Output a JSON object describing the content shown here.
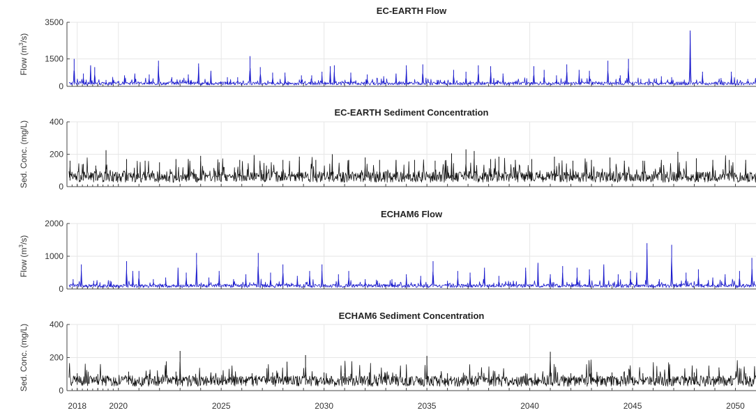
{
  "x_tick_labels": [
    "2018",
    "2020",
    "2025",
    "2030",
    "2035",
    "2040",
    "2045",
    "2050"
  ],
  "colors": {
    "flow": "#1a1acc",
    "sediment": "#111111",
    "grid": "#e6e6e6",
    "axis": "#444444"
  },
  "chart_data": [
    {
      "type": "line",
      "title": "EC-EARTH Flow",
      "ylabel": "Flow (m3/s)",
      "ylabel_parts": {
        "before": "Flow (m",
        "sup": "3",
        "after": "/s)"
      },
      "y_ticks": [
        0,
        1500,
        3500
      ],
      "ylim": [
        0,
        3500
      ],
      "xlim": [
        2017.5,
        2051.0
      ],
      "grid": true,
      "color_key": "flow",
      "series": [
        {
          "base": 200,
          "peaks": [
            {
              "x": 2017.85,
              "y": 1500
            },
            {
              "x": 2018.3,
              "y": 700
            },
            {
              "x": 2018.65,
              "y": 1150
            },
            {
              "x": 2018.85,
              "y": 1050
            },
            {
              "x": 2019.4,
              "y": 350
            },
            {
              "x": 2020.3,
              "y": 600
            },
            {
              "x": 2020.8,
              "y": 700
            },
            {
              "x": 2021.5,
              "y": 650
            },
            {
              "x": 2021.95,
              "y": 1400
            },
            {
              "x": 2022.6,
              "y": 500
            },
            {
              "x": 2023.4,
              "y": 650
            },
            {
              "x": 2023.9,
              "y": 1250
            },
            {
              "x": 2024.5,
              "y": 850
            },
            {
              "x": 2025.3,
              "y": 500
            },
            {
              "x": 2025.8,
              "y": 500
            },
            {
              "x": 2026.4,
              "y": 1650
            },
            {
              "x": 2026.9,
              "y": 1050
            },
            {
              "x": 2027.5,
              "y": 750
            },
            {
              "x": 2028.1,
              "y": 750
            },
            {
              "x": 2028.9,
              "y": 600
            },
            {
              "x": 2029.4,
              "y": 600
            },
            {
              "x": 2029.9,
              "y": 800
            },
            {
              "x": 2030.3,
              "y": 1100
            },
            {
              "x": 2030.5,
              "y": 1150
            },
            {
              "x": 2031.3,
              "y": 750
            },
            {
              "x": 2032.1,
              "y": 650
            },
            {
              "x": 2032.9,
              "y": 550
            },
            {
              "x": 2033.5,
              "y": 700
            },
            {
              "x": 2034.0,
              "y": 1150
            },
            {
              "x": 2034.8,
              "y": 1200
            },
            {
              "x": 2035.5,
              "y": 350
            },
            {
              "x": 2036.3,
              "y": 900
            },
            {
              "x": 2036.9,
              "y": 800
            },
            {
              "x": 2037.5,
              "y": 1150
            },
            {
              "x": 2038.1,
              "y": 1100
            },
            {
              "x": 2038.7,
              "y": 700
            },
            {
              "x": 2039.3,
              "y": 300
            },
            {
              "x": 2040.2,
              "y": 1100
            },
            {
              "x": 2040.7,
              "y": 900
            },
            {
              "x": 2041.3,
              "y": 600
            },
            {
              "x": 2041.8,
              "y": 1200
            },
            {
              "x": 2042.4,
              "y": 900
            },
            {
              "x": 2042.9,
              "y": 850
            },
            {
              "x": 2043.8,
              "y": 1400
            },
            {
              "x": 2044.4,
              "y": 600
            },
            {
              "x": 2044.8,
              "y": 1500
            },
            {
              "x": 2045.4,
              "y": 400
            },
            {
              "x": 2046.4,
              "y": 550
            },
            {
              "x": 2046.9,
              "y": 500
            },
            {
              "x": 2047.8,
              "y": 3050
            },
            {
              "x": 2048.4,
              "y": 800
            },
            {
              "x": 2049.3,
              "y": 450
            },
            {
              "x": 2049.8,
              "y": 800
            },
            {
              "x": 2050.6,
              "y": 400
            }
          ]
        }
      ]
    },
    {
      "type": "line",
      "title": "EC-EARTH Sediment Concentration",
      "ylabel": "Sed. Conc. (mg/L)",
      "y_ticks": [
        0,
        200,
        400
      ],
      "ylim": [
        0,
        400
      ],
      "xlim": [
        2017.5,
        2051.0
      ],
      "grid": true,
      "color_key": "sediment",
      "series": [
        {
          "base": 75,
          "peaks": [
            {
              "x": 2017.65,
              "y": 160
            },
            {
              "x": 2018.3,
              "y": 140
            },
            {
              "x": 2018.9,
              "y": 130
            },
            {
              "x": 2019.4,
              "y": 225
            },
            {
              "x": 2020.4,
              "y": 170
            },
            {
              "x": 2021.3,
              "y": 160
            },
            {
              "x": 2022.0,
              "y": 150
            },
            {
              "x": 2022.8,
              "y": 170
            },
            {
              "x": 2023.4,
              "y": 170
            },
            {
              "x": 2024.0,
              "y": 190
            },
            {
              "x": 2024.9,
              "y": 150
            },
            {
              "x": 2025.9,
              "y": 165
            },
            {
              "x": 2026.6,
              "y": 195
            },
            {
              "x": 2027.2,
              "y": 130
            },
            {
              "x": 2028.0,
              "y": 165
            },
            {
              "x": 2028.8,
              "y": 185
            },
            {
              "x": 2029.6,
              "y": 165
            },
            {
              "x": 2030.4,
              "y": 200
            },
            {
              "x": 2031.2,
              "y": 165
            },
            {
              "x": 2032.0,
              "y": 180
            },
            {
              "x": 2032.7,
              "y": 165
            },
            {
              "x": 2033.5,
              "y": 165
            },
            {
              "x": 2034.4,
              "y": 165
            },
            {
              "x": 2035.4,
              "y": 160
            },
            {
              "x": 2036.2,
              "y": 205
            },
            {
              "x": 2036.9,
              "y": 230
            },
            {
              "x": 2037.3,
              "y": 220
            },
            {
              "x": 2038.1,
              "y": 170
            },
            {
              "x": 2038.5,
              "y": 185
            },
            {
              "x": 2039.3,
              "y": 165
            },
            {
              "x": 2040.1,
              "y": 170
            },
            {
              "x": 2041.2,
              "y": 185
            },
            {
              "x": 2042.1,
              "y": 160
            },
            {
              "x": 2043.0,
              "y": 165
            },
            {
              "x": 2043.9,
              "y": 180
            },
            {
              "x": 2044.6,
              "y": 160
            },
            {
              "x": 2045.5,
              "y": 160
            },
            {
              "x": 2046.4,
              "y": 165
            },
            {
              "x": 2047.2,
              "y": 215
            },
            {
              "x": 2048.1,
              "y": 175
            },
            {
              "x": 2048.9,
              "y": 165
            },
            {
              "x": 2049.7,
              "y": 165
            },
            {
              "x": 2050.5,
              "y": 165
            }
          ]
        }
      ]
    },
    {
      "type": "line",
      "title": "ECHAM6 Flow",
      "ylabel": "Flow (m3/s)",
      "ylabel_parts": {
        "before": "Flow (m",
        "sup": "3",
        "after": "/s)"
      },
      "y_ticks": [
        0,
        1000,
        2000
      ],
      "ylim": [
        0,
        2000
      ],
      "xlim": [
        2017.5,
        2051.0
      ],
      "grid": true,
      "color_key": "flow",
      "series": [
        {
          "base": 120,
          "peaks": [
            {
              "x": 2017.8,
              "y": 300
            },
            {
              "x": 2018.2,
              "y": 750
            },
            {
              "x": 2018.8,
              "y": 250
            },
            {
              "x": 2019.6,
              "y": 250
            },
            {
              "x": 2020.4,
              "y": 850
            },
            {
              "x": 2020.7,
              "y": 550
            },
            {
              "x": 2021.0,
              "y": 550
            },
            {
              "x": 2021.7,
              "y": 300
            },
            {
              "x": 2022.3,
              "y": 350
            },
            {
              "x": 2022.9,
              "y": 650
            },
            {
              "x": 2023.3,
              "y": 500
            },
            {
              "x": 2023.8,
              "y": 1100
            },
            {
              "x": 2024.4,
              "y": 350
            },
            {
              "x": 2024.9,
              "y": 550
            },
            {
              "x": 2025.6,
              "y": 300
            },
            {
              "x": 2026.2,
              "y": 450
            },
            {
              "x": 2026.8,
              "y": 1100
            },
            {
              "x": 2027.4,
              "y": 500
            },
            {
              "x": 2028.0,
              "y": 750
            },
            {
              "x": 2028.7,
              "y": 400
            },
            {
              "x": 2029.3,
              "y": 550
            },
            {
              "x": 2029.9,
              "y": 750
            },
            {
              "x": 2030.7,
              "y": 450
            },
            {
              "x": 2031.2,
              "y": 550
            },
            {
              "x": 2032.0,
              "y": 300
            },
            {
              "x": 2032.6,
              "y": 250
            },
            {
              "x": 2033.3,
              "y": 300
            },
            {
              "x": 2034.0,
              "y": 450
            },
            {
              "x": 2034.7,
              "y": 400
            },
            {
              "x": 2035.3,
              "y": 850
            },
            {
              "x": 2036.0,
              "y": 250
            },
            {
              "x": 2036.5,
              "y": 550
            },
            {
              "x": 2037.1,
              "y": 500
            },
            {
              "x": 2037.8,
              "y": 650
            },
            {
              "x": 2038.5,
              "y": 400
            },
            {
              "x": 2039.2,
              "y": 250
            },
            {
              "x": 2039.8,
              "y": 650
            },
            {
              "x": 2040.4,
              "y": 800
            },
            {
              "x": 2041.0,
              "y": 450
            },
            {
              "x": 2041.6,
              "y": 700
            },
            {
              "x": 2042.3,
              "y": 650
            },
            {
              "x": 2042.9,
              "y": 600
            },
            {
              "x": 2043.6,
              "y": 750
            },
            {
              "x": 2044.3,
              "y": 450
            },
            {
              "x": 2044.9,
              "y": 550
            },
            {
              "x": 2045.2,
              "y": 500
            },
            {
              "x": 2045.7,
              "y": 1400
            },
            {
              "x": 2046.3,
              "y": 300
            },
            {
              "x": 2046.9,
              "y": 1350
            },
            {
              "x": 2047.6,
              "y": 500
            },
            {
              "x": 2048.2,
              "y": 600
            },
            {
              "x": 2048.9,
              "y": 350
            },
            {
              "x": 2049.5,
              "y": 450
            },
            {
              "x": 2050.2,
              "y": 550
            },
            {
              "x": 2050.8,
              "y": 950
            }
          ]
        }
      ]
    },
    {
      "type": "line",
      "title": "ECHAM6 Sediment Concentration",
      "ylabel": "Sed. Conc. (mg/L)",
      "y_ticks": [
        0,
        200,
        400
      ],
      "ylim": [
        0,
        400
      ],
      "xlim": [
        2017.5,
        2051.0
      ],
      "grid": true,
      "color_key": "sediment",
      "series": [
        {
          "base": 72,
          "peaks": [
            {
              "x": 2018.0,
              "y": 105
            },
            {
              "x": 2019.0,
              "y": 100
            },
            {
              "x": 2020.5,
              "y": 115
            },
            {
              "x": 2021.5,
              "y": 100
            },
            {
              "x": 2022.8,
              "y": 115
            },
            {
              "x": 2023.0,
              "y": 240
            },
            {
              "x": 2024.5,
              "y": 110
            },
            {
              "x": 2025.5,
              "y": 100
            },
            {
              "x": 2026.5,
              "y": 105
            },
            {
              "x": 2027.5,
              "y": 110
            },
            {
              "x": 2028.2,
              "y": 175
            },
            {
              "x": 2029.1,
              "y": 215
            },
            {
              "x": 2030.0,
              "y": 110
            },
            {
              "x": 2031.0,
              "y": 105
            },
            {
              "x": 2032.2,
              "y": 110
            },
            {
              "x": 2033.5,
              "y": 100
            },
            {
              "x": 2035.0,
              "y": 210
            },
            {
              "x": 2036.0,
              "y": 105
            },
            {
              "x": 2037.5,
              "y": 110
            },
            {
              "x": 2038.5,
              "y": 100
            },
            {
              "x": 2039.8,
              "y": 105
            },
            {
              "x": 2041.0,
              "y": 235
            },
            {
              "x": 2042.0,
              "y": 105
            },
            {
              "x": 2043.0,
              "y": 110
            },
            {
              "x": 2044.0,
              "y": 110
            },
            {
              "x": 2045.5,
              "y": 105
            },
            {
              "x": 2046.8,
              "y": 100
            },
            {
              "x": 2048.0,
              "y": 110
            },
            {
              "x": 2049.2,
              "y": 140
            },
            {
              "x": 2050.5,
              "y": 105
            }
          ]
        }
      ]
    }
  ]
}
